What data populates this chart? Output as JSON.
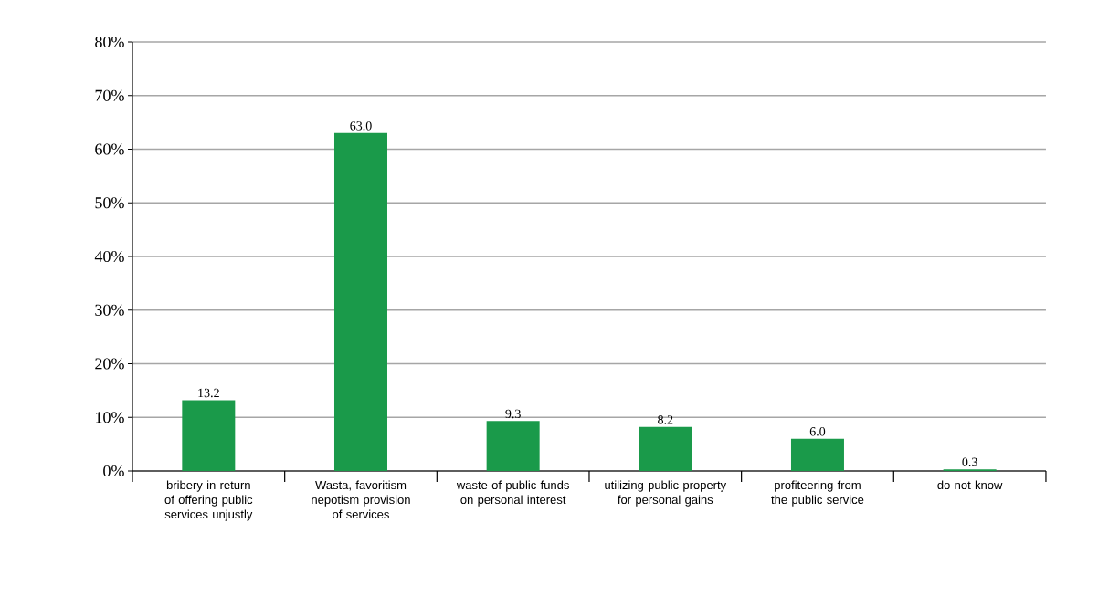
{
  "chart_data": {
    "type": "bar",
    "categories": [
      "bribery in return of offering public services unjustly",
      "Wasta, favoritism nepotism provision of services",
      "waste of public funds on personal interest",
      "utilizing public property for personal gains",
      "profiteering from the public service",
      "do not know"
    ],
    "values": [
      13.2,
      63.0,
      9.3,
      8.2,
      6.0,
      0.3
    ],
    "value_labels": [
      "13.2",
      "63.0",
      "9.3",
      "8.2",
      "6.0",
      "0.3"
    ],
    "color": "#1a9a4a",
    "ylim": [
      0,
      80
    ],
    "yticks": [
      {
        "value": 0,
        "label": "0%"
      },
      {
        "value": 10,
        "label": "10%"
      },
      {
        "value": 20,
        "label": "20%"
      },
      {
        "value": 30,
        "label": "30%"
      },
      {
        "value": 40,
        "label": "40%"
      },
      {
        "value": 50,
        "label": "50%"
      },
      {
        "value": 60,
        "label": "60%"
      },
      {
        "value": 70,
        "label": "70%"
      },
      {
        "value": 80,
        "label": "80%"
      }
    ],
    "grid": "y"
  }
}
